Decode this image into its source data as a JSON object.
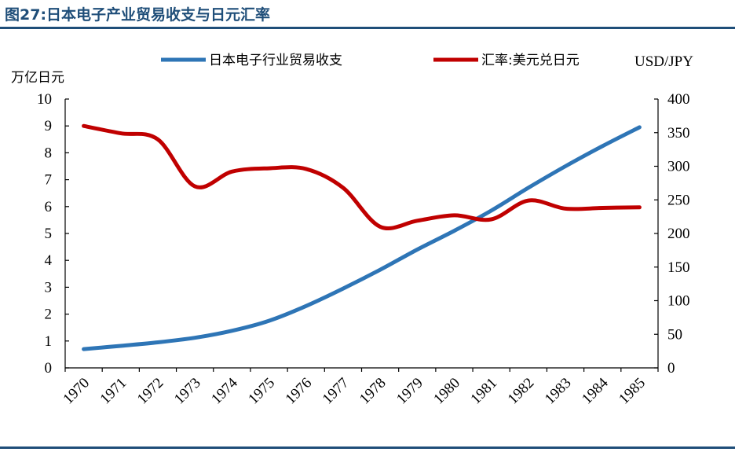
{
  "figure_title": "图27:日本电子产业贸易收支与日元汇率",
  "chart_data": {
    "type": "line",
    "categories": [
      "1970",
      "1971",
      "1972",
      "1973",
      "1974",
      "1975",
      "1976",
      "1977",
      "1978",
      "1979",
      "1980",
      "1981",
      "1982",
      "1983",
      "1984",
      "1985"
    ],
    "y_left": {
      "unit": "万亿日元",
      "ylim": [
        0,
        10
      ],
      "ticks": [
        "0",
        "1",
        "2",
        "3",
        "4",
        "5",
        "6",
        "7",
        "8",
        "9",
        "10"
      ]
    },
    "y_right": {
      "unit": "USD/JPY",
      "ylim": [
        0,
        400
      ],
      "ticks": [
        "0",
        "50",
        "100",
        "150",
        "200",
        "250",
        "300",
        "350",
        "400"
      ]
    },
    "series": [
      {
        "name": "日本电子行业贸易收支",
        "axis": "left",
        "color": "#2E75B6",
        "values": [
          0.7,
          0.82,
          0.95,
          1.12,
          1.38,
          1.75,
          2.3,
          2.95,
          3.65,
          4.4,
          5.1,
          5.85,
          6.7,
          7.5,
          8.25,
          8.95
        ]
      },
      {
        "name": "汇率:美元兑日元",
        "axis": "right",
        "color": "#C00000",
        "values": [
          360,
          349,
          340,
          270,
          292,
          297,
          296,
          268,
          210,
          219,
          227,
          221,
          249,
          237,
          238,
          239
        ]
      }
    ],
    "legend_position": "top",
    "grid": false
  }
}
